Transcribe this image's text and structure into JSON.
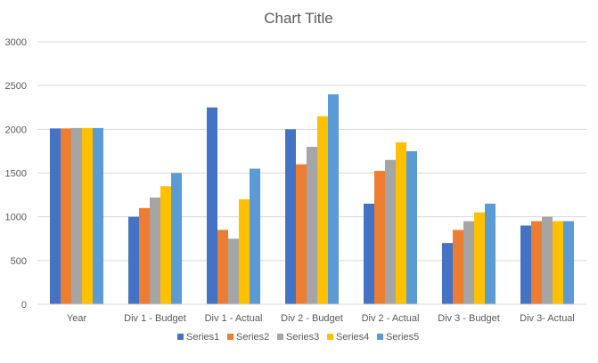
{
  "chart_data": {
    "type": "bar",
    "title": "Chart Title",
    "xlabel": "",
    "ylabel": "",
    "categories": [
      "Year",
      "Div 1 - Budget",
      "Div 1 - Actual",
      "Div 2 - Budget",
      "Div 2 - Actual",
      "Div 3 - Budget",
      "Div 3- Actual"
    ],
    "ylim": [
      0,
      3000
    ],
    "yticks": [
      0,
      500,
      1000,
      1500,
      2000,
      2500,
      3000
    ],
    "grid": true,
    "legend_position": "bottom",
    "series": [
      {
        "name": "Series1",
        "color": "#4472C4",
        "values": [
          2010,
          1000,
          2250,
          2000,
          1150,
          700,
          900
        ]
      },
      {
        "name": "Series2",
        "color": "#ED7D31",
        "values": [
          2010,
          1100,
          850,
          1600,
          1525,
          850,
          950
        ]
      },
      {
        "name": "Series3",
        "color": "#A5A5A5",
        "values": [
          2015,
          1220,
          750,
          1800,
          1650,
          950,
          1000
        ]
      },
      {
        "name": "Series4",
        "color": "#FFC000",
        "values": [
          2015,
          1350,
          1200,
          2150,
          1850,
          1050,
          950
        ]
      },
      {
        "name": "Series5",
        "color": "#5B9BD5",
        "values": [
          2015,
          1500,
          1550,
          2400,
          1750,
          1150,
          950
        ]
      }
    ]
  }
}
